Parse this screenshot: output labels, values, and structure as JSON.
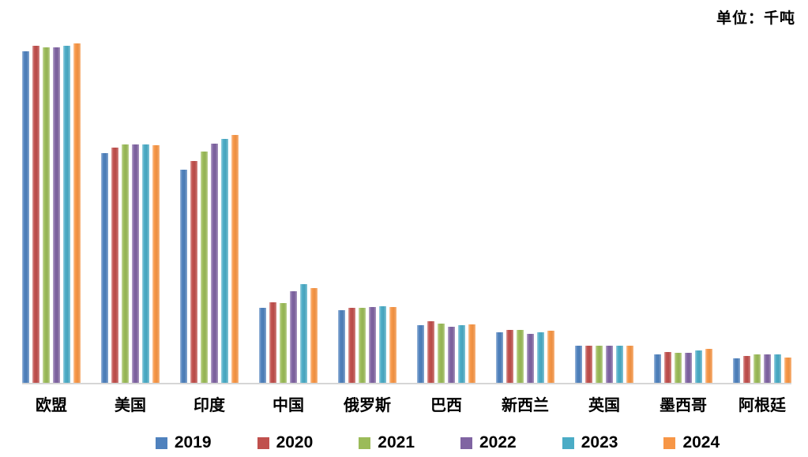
{
  "unit_label": "单位：千吨",
  "chart_data": {
    "type": "bar",
    "title": "",
    "unit_note": "单位：千吨",
    "categories": [
      "欧盟",
      "美国",
      "印度",
      "中国",
      "俄罗斯",
      "巴西",
      "新西兰",
      "英国",
      "墨西哥",
      "阿根廷"
    ],
    "series": [
      {
        "name": "2019",
        "color": "#4F81BD",
        "values": [
          144500,
          100100,
          92900,
          32700,
          31600,
          25100,
          22000,
          16200,
          12400,
          10700
        ]
      },
      {
        "name": "2020",
        "color": "#C0504D",
        "values": [
          146900,
          102500,
          96700,
          35100,
          32700,
          26800,
          23000,
          16200,
          13400,
          11700
        ]
      },
      {
        "name": "2021",
        "color": "#9BBB59",
        "values": [
          146200,
          103900,
          100800,
          34700,
          32700,
          25800,
          23000,
          16200,
          13100,
          12400
        ]
      },
      {
        "name": "2022",
        "color": "#8064A2",
        "values": [
          146200,
          103900,
          104200,
          39900,
          33000,
          24400,
          21300,
          16200,
          13100,
          12400
        ]
      },
      {
        "name": "2023",
        "color": "#4BACC6",
        "values": [
          146900,
          103900,
          106300,
          43000,
          33400,
          25100,
          22000,
          16200,
          14100,
          12400
        ]
      },
      {
        "name": "2024",
        "color": "#F79646",
        "values": [
          147900,
          103500,
          108000,
          41300,
          33000,
          25500,
          22700,
          16200,
          14800,
          11000
        ]
      }
    ],
    "ylim": [
      0,
      160000
    ],
    "xlabel": "",
    "ylabel": "",
    "grid": false,
    "y_axis_visible": false,
    "legend_position": "bottom",
    "axis_line_color": "#d6d6d6",
    "background_color": "#ffffff"
  }
}
